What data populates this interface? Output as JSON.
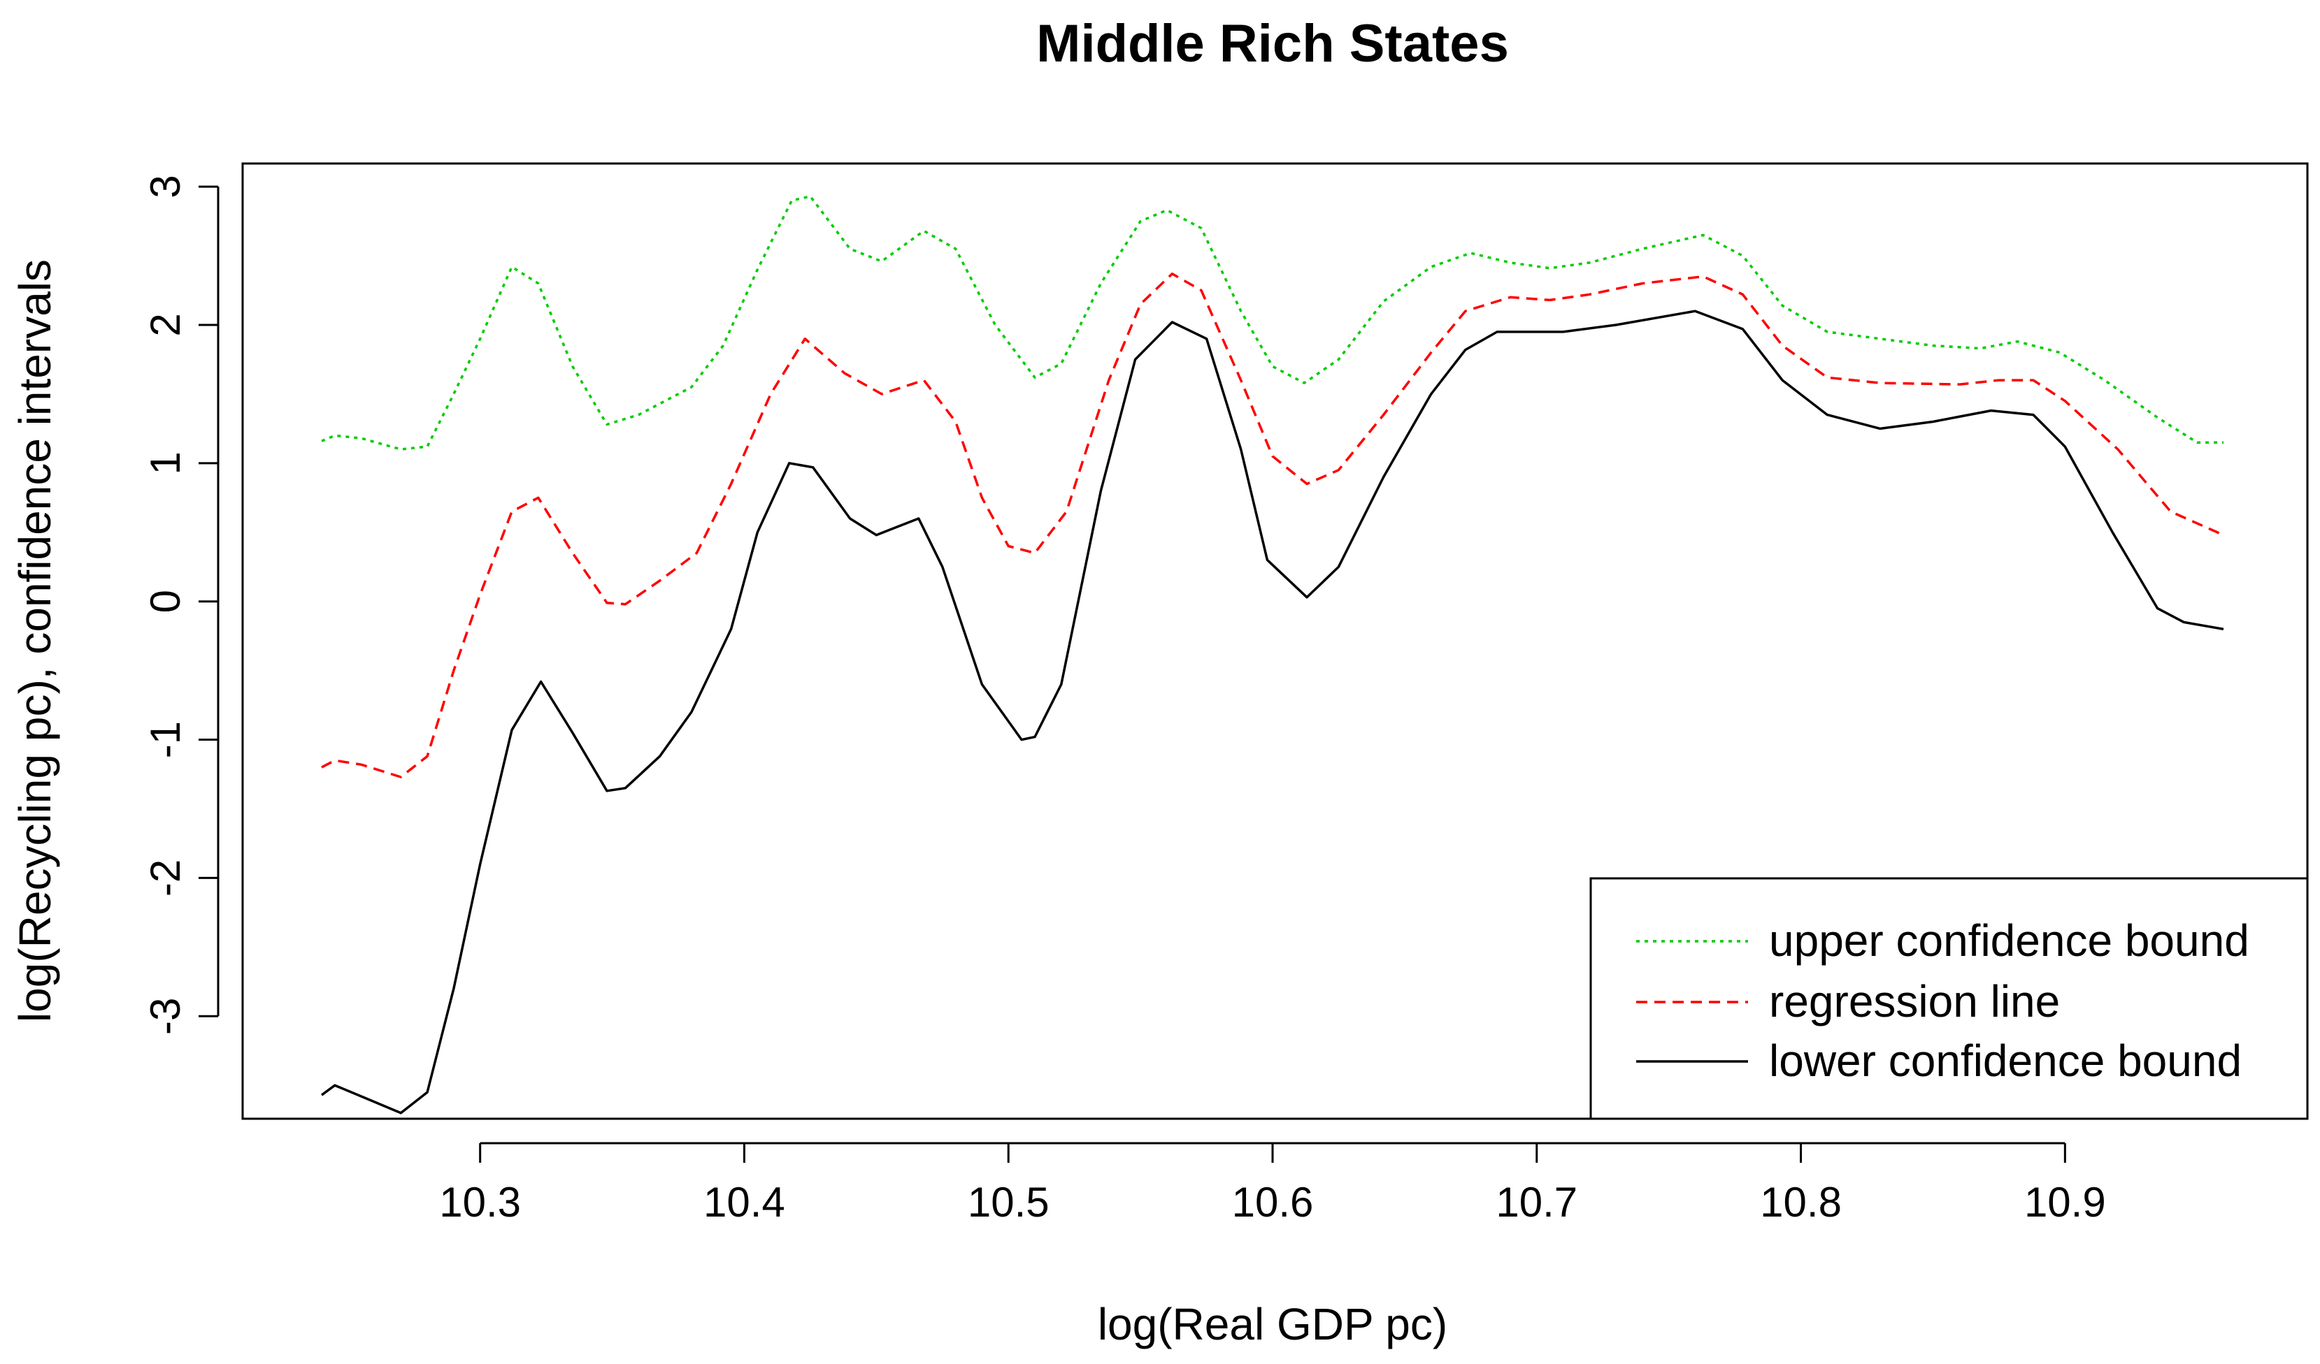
{
  "chart_data": {
    "type": "line",
    "title": "Middle Rich States",
    "xlabel": "log(Real GDP pc)",
    "ylabel": "log(Recycling pc), confidence intervals",
    "xlim": [
      10.24,
      10.96
    ],
    "ylim": [
      -3.6,
      2.95
    ],
    "x_ticks": [
      10.3,
      10.4,
      10.5,
      10.6,
      10.7,
      10.8,
      10.9
    ],
    "x_tick_labels": [
      "10.3",
      "10.4",
      "10.5",
      "10.6",
      "10.7",
      "10.8",
      "10.9"
    ],
    "y_ticks": [
      -3,
      -2,
      -1,
      0,
      1,
      2,
      3
    ],
    "y_tick_labels": [
      "-3",
      "-2",
      "-1",
      "0",
      "1",
      "2",
      "3"
    ],
    "legend_position": "bottom-right",
    "series": [
      {
        "name": "upper confidence bound",
        "color": "#00cc00",
        "style": "dotted",
        "points": [
          [
            10.24,
            1.16
          ],
          [
            10.245,
            1.2
          ],
          [
            10.255,
            1.18
          ],
          [
            10.27,
            1.1
          ],
          [
            10.28,
            1.12
          ],
          [
            10.29,
            1.5
          ],
          [
            10.3,
            1.9
          ],
          [
            10.312,
            2.42
          ],
          [
            10.322,
            2.3
          ],
          [
            10.335,
            1.7
          ],
          [
            10.348,
            1.28
          ],
          [
            10.36,
            1.35
          ],
          [
            10.38,
            1.55
          ],
          [
            10.392,
            1.85
          ],
          [
            10.405,
            2.4
          ],
          [
            10.418,
            2.9
          ],
          [
            10.425,
            2.93
          ],
          [
            10.44,
            2.55
          ],
          [
            10.452,
            2.46
          ],
          [
            10.468,
            2.68
          ],
          [
            10.48,
            2.55
          ],
          [
            10.495,
            2.0
          ],
          [
            10.51,
            1.62
          ],
          [
            10.52,
            1.72
          ],
          [
            10.535,
            2.3
          ],
          [
            10.55,
            2.75
          ],
          [
            10.56,
            2.83
          ],
          [
            10.573,
            2.7
          ],
          [
            10.588,
            2.1
          ],
          [
            10.6,
            1.7
          ],
          [
            10.612,
            1.58
          ],
          [
            10.625,
            1.75
          ],
          [
            10.642,
            2.17
          ],
          [
            10.66,
            2.42
          ],
          [
            10.675,
            2.52
          ],
          [
            10.69,
            2.45
          ],
          [
            10.705,
            2.41
          ],
          [
            10.72,
            2.45
          ],
          [
            10.74,
            2.55
          ],
          [
            10.763,
            2.65
          ],
          [
            10.778,
            2.5
          ],
          [
            10.793,
            2.14
          ],
          [
            10.81,
            1.95
          ],
          [
            10.83,
            1.9
          ],
          [
            10.85,
            1.85
          ],
          [
            10.868,
            1.83
          ],
          [
            10.882,
            1.88
          ],
          [
            10.898,
            1.8
          ],
          [
            10.915,
            1.6
          ],
          [
            10.935,
            1.33
          ],
          [
            10.95,
            1.15
          ],
          [
            10.96,
            1.15
          ]
        ]
      },
      {
        "name": "regression line",
        "color": "#ff0000",
        "style": "dashed",
        "points": [
          [
            10.24,
            -1.2
          ],
          [
            10.245,
            -1.15
          ],
          [
            10.255,
            -1.18
          ],
          [
            10.27,
            -1.27
          ],
          [
            10.28,
            -1.12
          ],
          [
            10.29,
            -0.5
          ],
          [
            10.3,
            0.05
          ],
          [
            10.312,
            0.65
          ],
          [
            10.322,
            0.75
          ],
          [
            10.335,
            0.35
          ],
          [
            10.348,
            -0.01
          ],
          [
            10.355,
            -0.02
          ],
          [
            10.368,
            0.15
          ],
          [
            10.382,
            0.35
          ],
          [
            10.395,
            0.85
          ],
          [
            10.41,
            1.5
          ],
          [
            10.423,
            1.9
          ],
          [
            10.438,
            1.65
          ],
          [
            10.452,
            1.5
          ],
          [
            10.468,
            1.6
          ],
          [
            10.48,
            1.3
          ],
          [
            10.49,
            0.75
          ],
          [
            10.5,
            0.4
          ],
          [
            10.51,
            0.35
          ],
          [
            10.522,
            0.65
          ],
          [
            10.538,
            1.6
          ],
          [
            10.55,
            2.15
          ],
          [
            10.562,
            2.37
          ],
          [
            10.573,
            2.25
          ],
          [
            10.588,
            1.6
          ],
          [
            10.6,
            1.05
          ],
          [
            10.613,
            0.85
          ],
          [
            10.625,
            0.95
          ],
          [
            10.642,
            1.35
          ],
          [
            10.66,
            1.8
          ],
          [
            10.673,
            2.1
          ],
          [
            10.69,
            2.2
          ],
          [
            10.705,
            2.18
          ],
          [
            10.72,
            2.22
          ],
          [
            10.74,
            2.3
          ],
          [
            10.763,
            2.35
          ],
          [
            10.778,
            2.22
          ],
          [
            10.793,
            1.85
          ],
          [
            10.81,
            1.62
          ],
          [
            10.83,
            1.58
          ],
          [
            10.86,
            1.57
          ],
          [
            10.875,
            1.6
          ],
          [
            10.888,
            1.6
          ],
          [
            10.9,
            1.45
          ],
          [
            10.92,
            1.1
          ],
          [
            10.94,
            0.65
          ],
          [
            10.96,
            0.48
          ]
        ]
      },
      {
        "name": "lower confidence bound",
        "color": "#000000",
        "style": "solid",
        "points": [
          [
            10.24,
            -3.57
          ],
          [
            10.245,
            -3.5
          ],
          [
            10.255,
            -3.58
          ],
          [
            10.27,
            -3.7
          ],
          [
            10.28,
            -3.55
          ],
          [
            10.29,
            -2.8
          ],
          [
            10.3,
            -1.9
          ],
          [
            10.312,
            -0.93
          ],
          [
            10.323,
            -0.58
          ],
          [
            10.335,
            -0.95
          ],
          [
            10.348,
            -1.37
          ],
          [
            10.355,
            -1.35
          ],
          [
            10.368,
            -1.12
          ],
          [
            10.38,
            -0.8
          ],
          [
            10.395,
            -0.2
          ],
          [
            10.405,
            0.5
          ],
          [
            10.417,
            1.0
          ],
          [
            10.426,
            0.97
          ],
          [
            10.44,
            0.6
          ],
          [
            10.45,
            0.48
          ],
          [
            10.466,
            0.6
          ],
          [
            10.475,
            0.25
          ],
          [
            10.49,
            -0.6
          ],
          [
            10.505,
            -1.0
          ],
          [
            10.51,
            -0.98
          ],
          [
            10.52,
            -0.6
          ],
          [
            10.535,
            0.8
          ],
          [
            10.548,
            1.75
          ],
          [
            10.562,
            2.02
          ],
          [
            10.575,
            1.9
          ],
          [
            10.588,
            1.1
          ],
          [
            10.598,
            0.3
          ],
          [
            10.613,
            0.03
          ],
          [
            10.625,
            0.25
          ],
          [
            10.642,
            0.9
          ],
          [
            10.66,
            1.5
          ],
          [
            10.673,
            1.82
          ],
          [
            10.685,
            1.95
          ],
          [
            10.71,
            1.95
          ],
          [
            10.73,
            2.0
          ],
          [
            10.76,
            2.1
          ],
          [
            10.778,
            1.97
          ],
          [
            10.793,
            1.6
          ],
          [
            10.81,
            1.35
          ],
          [
            10.83,
            1.25
          ],
          [
            10.85,
            1.3
          ],
          [
            10.872,
            1.38
          ],
          [
            10.888,
            1.35
          ],
          [
            10.9,
            1.12
          ],
          [
            10.918,
            0.5
          ],
          [
            10.935,
            -0.05
          ],
          [
            10.945,
            -0.15
          ],
          [
            10.96,
            -0.2
          ]
        ]
      }
    ]
  }
}
